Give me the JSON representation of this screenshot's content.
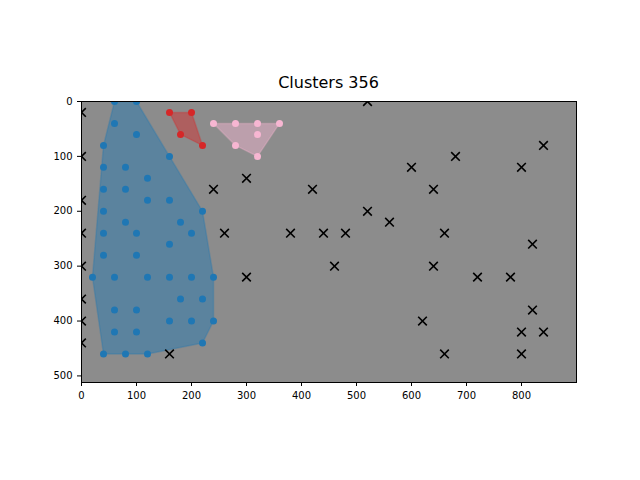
{
  "chart_data": {
    "type": "scatter",
    "title": "Clusters 356",
    "xlim": [
      0,
      900
    ],
    "ylim": [
      512,
      0
    ],
    "xticks": [
      0,
      100,
      200,
      300,
      400,
      500,
      600,
      700,
      800
    ],
    "yticks": [
      0,
      100,
      200,
      300,
      400,
      500
    ],
    "grid": false,
    "series": [
      {
        "color": "#1f77b4",
        "marker": "circle",
        "x": [
          60,
          100,
          60,
          40,
          100,
          40,
          80,
          40,
          80,
          120,
          160,
          40,
          80,
          120,
          160,
          220,
          40,
          100,
          160,
          200,
          180,
          40,
          100,
          20,
          60,
          120,
          160,
          200,
          240,
          180,
          220,
          60,
          100,
          160,
          200,
          240,
          60,
          100,
          220,
          40,
          80,
          120
        ],
        "y": [
          0,
          0,
          40,
          80,
          60,
          120,
          120,
          160,
          160,
          140,
          100,
          200,
          220,
          180,
          180,
          200,
          240,
          240,
          260,
          240,
          220,
          280,
          280,
          320,
          320,
          320,
          320,
          320,
          320,
          360,
          360,
          380,
          380,
          400,
          400,
          400,
          420,
          420,
          440,
          460,
          460,
          460
        ]
      },
      {
        "color": "#d62728",
        "marker": "circle",
        "x": [
          160,
          200,
          180,
          220
        ],
        "y": [
          20,
          20,
          60,
          80
        ]
      },
      {
        "color": "#f7b6d2",
        "marker": "circle",
        "x": [
          240,
          280,
          320,
          360,
          280,
          320,
          320
        ],
        "y": [
          40,
          40,
          40,
          40,
          80,
          60,
          100
        ]
      },
      {
        "color": "#000000",
        "marker": "x",
        "x": [
          0,
          0,
          0,
          0,
          0,
          0,
          0,
          0,
          240,
          300,
          260,
          300,
          380,
          420,
          440,
          480,
          460,
          520,
          520,
          560,
          600,
          640,
          680,
          660,
          640,
          620,
          660,
          720,
          780,
          800,
          840,
          820,
          820,
          800,
          840,
          800,
          160
        ],
        "y": [
          20,
          100,
          180,
          240,
          300,
          360,
          400,
          440,
          160,
          140,
          240,
          320,
          240,
          160,
          240,
          240,
          300,
          0,
          200,
          220,
          120,
          160,
          100,
          240,
          300,
          400,
          460,
          320,
          320,
          120,
          80,
          260,
          380,
          420,
          420,
          460,
          460
        ]
      }
    ]
  }
}
